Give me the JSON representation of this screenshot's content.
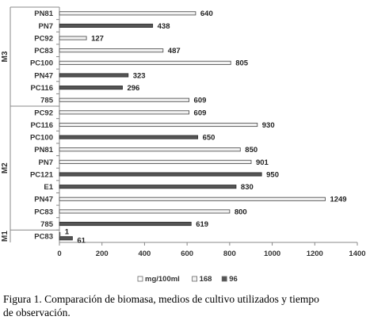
{
  "chart_data": {
    "type": "bar",
    "orientation": "horizontal",
    "xlim": [
      0,
      1400
    ],
    "x_ticks": [
      0,
      200,
      400,
      600,
      800,
      1000,
      1200,
      1400
    ],
    "grid": false,
    "legend_position": "bottom",
    "groups": [
      {
        "name": "M3",
        "categories": [
          "PN81",
          "PN7",
          "PC92",
          "PC83",
          "PC100",
          "PN47",
          "PC116",
          "785"
        ]
      },
      {
        "name": "M2",
        "categories": [
          "PC92",
          "PC116",
          "PC100",
          "PN81",
          "PN7",
          "PC121",
          "E1",
          "PN47",
          "PC83",
          "785"
        ]
      },
      {
        "name": "M1",
        "categories": [
          "PC83"
        ]
      }
    ],
    "categories": [
      "PN81",
      "PN7",
      "PC92",
      "PC83",
      "PC100",
      "PN47",
      "PC116",
      "785",
      "PC92",
      "PC116",
      "PC100",
      "PN81",
      "PN7",
      "PC121",
      "E1",
      "PN47",
      "PC83",
      "785",
      "PC83"
    ],
    "series": [
      {
        "name": "mg/100ml",
        "color": "#ffffff",
        "values": [
          null,
          null,
          null,
          null,
          null,
          null,
          null,
          null,
          null,
          null,
          null,
          null,
          null,
          null,
          null,
          null,
          null,
          null,
          null
        ]
      },
      {
        "name": "168",
        "color": "#f2f2f2",
        "values": [
          640,
          null,
          127,
          487,
          805,
          null,
          null,
          609,
          609,
          930,
          null,
          850,
          901,
          null,
          null,
          1249,
          800,
          null,
          1
        ]
      },
      {
        "name": "96",
        "color": "#555555",
        "values": [
          null,
          438,
          null,
          null,
          null,
          323,
          296,
          null,
          null,
          null,
          650,
          null,
          null,
          950,
          830,
          null,
          null,
          619,
          61
        ]
      }
    ]
  },
  "caption": {
    "line1": "Figura 1. Comparación de biomasa, medios de cultivo utilizados y tiempo",
    "line2": "de observación."
  }
}
